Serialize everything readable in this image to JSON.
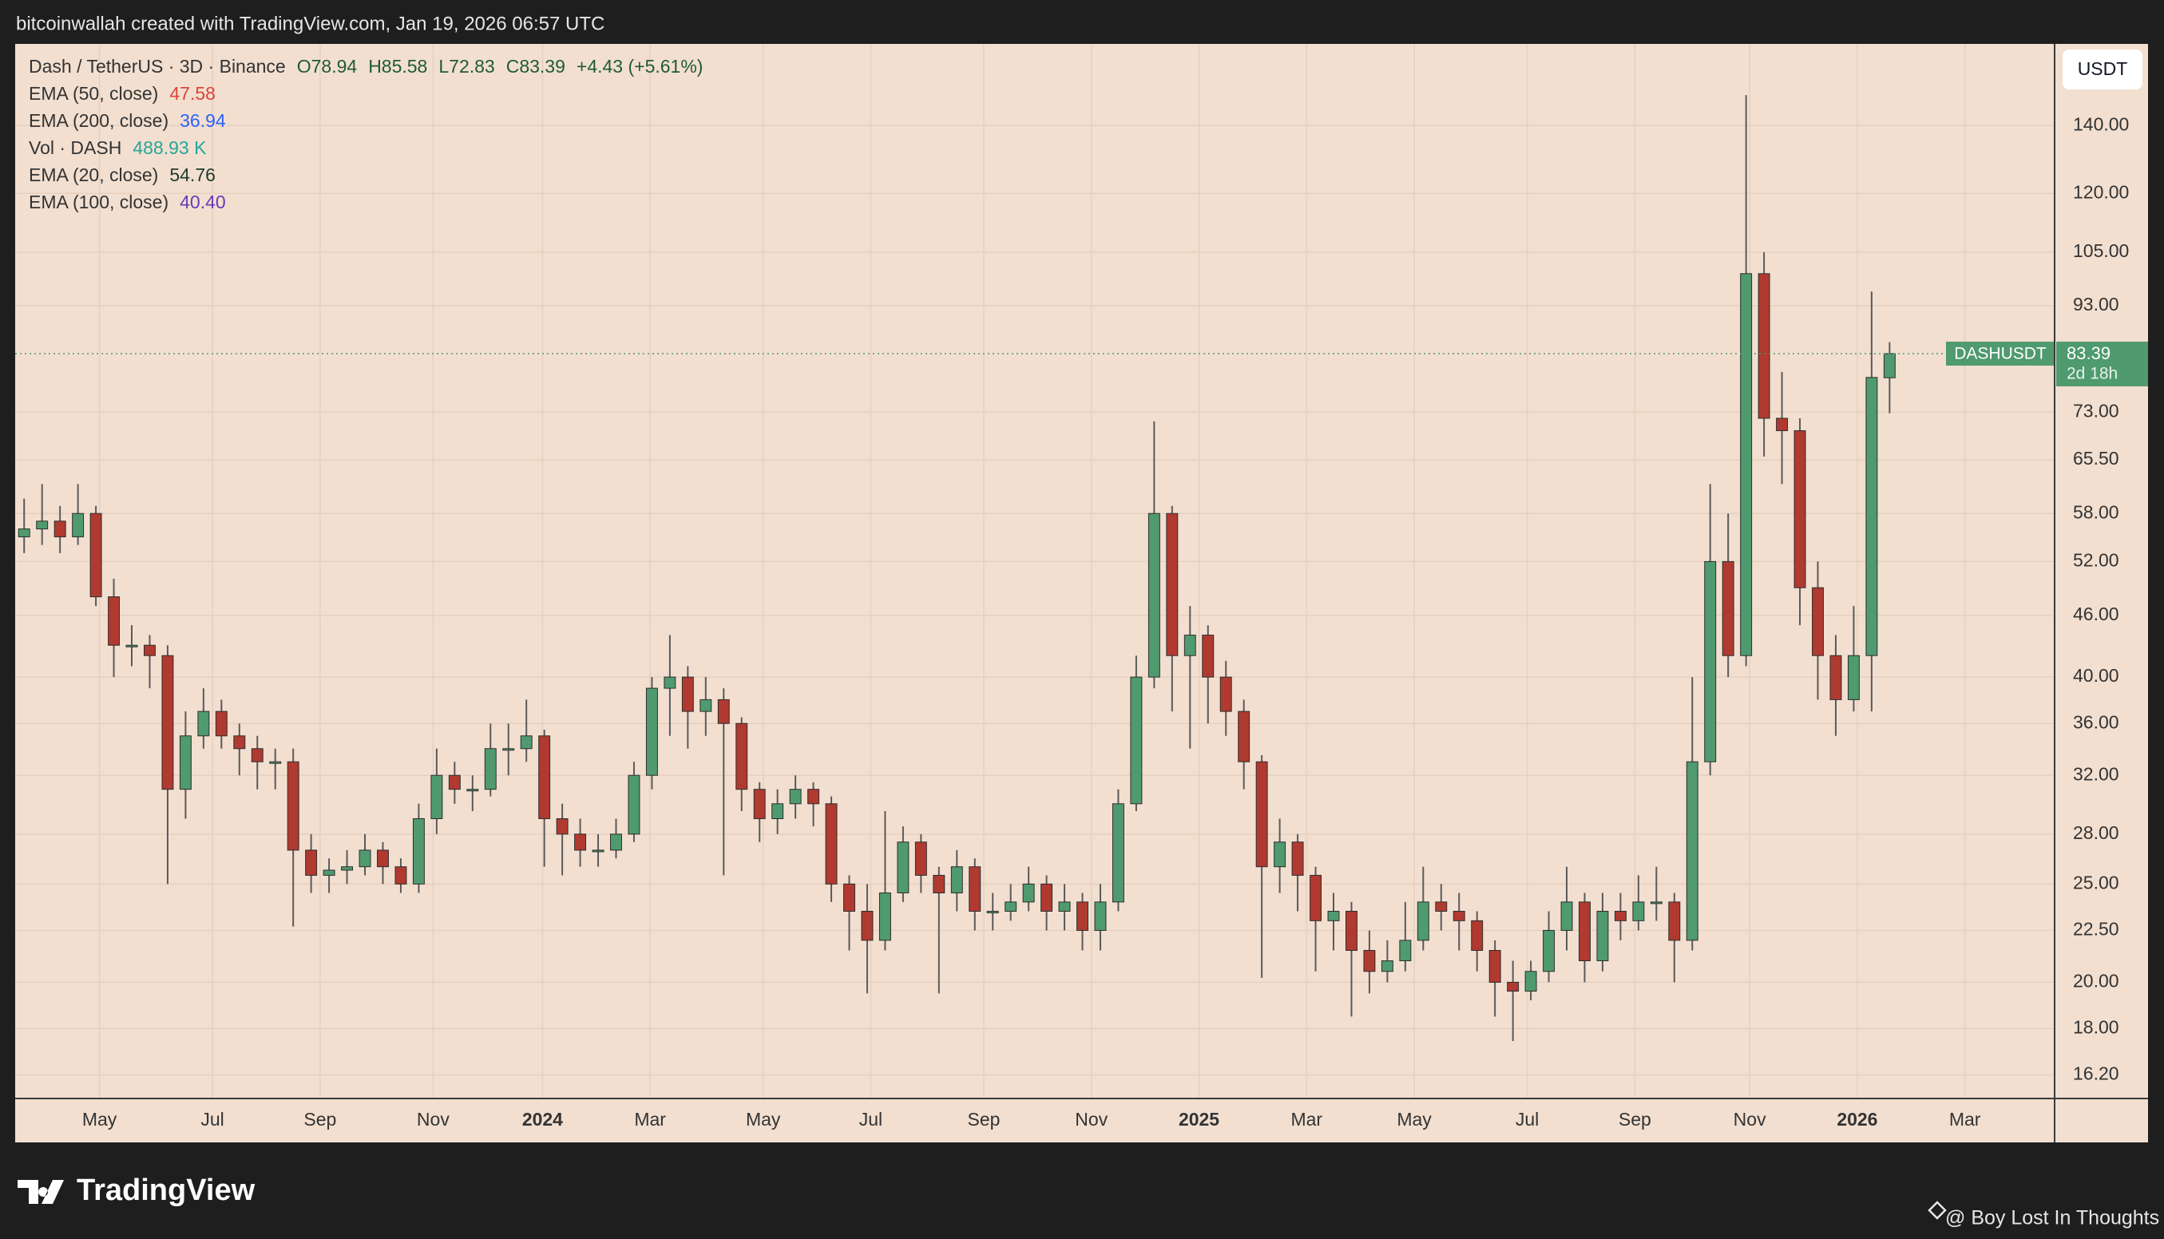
{
  "page": {
    "header": "bitcoinwallah created with TradingView.com, Jan 19, 2026 06:57 UTC",
    "footer": {
      "logo": "TradingView",
      "credit": "@ Boy Lost In Thoughts"
    }
  },
  "chart_data": {
    "type": "candlestick",
    "title": "Dash / TetherUS · 3D · Binance",
    "ohlc_readout": [
      "O78.94",
      "H85.58",
      "L72.83",
      "C83.39",
      "+4.43 (+5.61%)"
    ],
    "indicators": [
      {
        "name": "EMA (50, close)",
        "value": "47.58",
        "color": "#d9453b"
      },
      {
        "name": "EMA (200, close)",
        "value": "36.94",
        "color": "#2962ff"
      },
      {
        "name": "Vol · DASH",
        "value": "488.93 K",
        "color": "#26a69a"
      },
      {
        "name": "EMA (20, close)",
        "value": "54.76",
        "color": "#1f3a2a"
      },
      {
        "name": "EMA (100, close)",
        "value": "40.40",
        "color": "#673ab7"
      }
    ],
    "symbol": "DASHUSDT",
    "currency": "USDT",
    "countdown": "2d 18h",
    "up_color": "#4f9a6e",
    "down_color": "#b03a30",
    "log_scale": true,
    "grid": true,
    "open": [
      55,
      56,
      57,
      55,
      58,
      48,
      43,
      43,
      42,
      31,
      35,
      37,
      35,
      34,
      33,
      33,
      27,
      25.5,
      25.8,
      26,
      27,
      26,
      25,
      29,
      32,
      31,
      31,
      34,
      34,
      35,
      29,
      28,
      27,
      27,
      28,
      32,
      39,
      40,
      37,
      38,
      36,
      31,
      29,
      30,
      31,
      30,
      25,
      23.5,
      22,
      24.5,
      27.5,
      25.5,
      24.5,
      26,
      23.5,
      23.5,
      24,
      25,
      23.5,
      24,
      22.5,
      24,
      30,
      40,
      58,
      42,
      44,
      40,
      37,
      33,
      26,
      27.5,
      25.5,
      23,
      23.5,
      21.5,
      20.5,
      21,
      22,
      24,
      23.5,
      23,
      21.5,
      20,
      19.6,
      20.5,
      22.5,
      24,
      21,
      23.5,
      23,
      24,
      24,
      22,
      33,
      52,
      42,
      100,
      72,
      70,
      49,
      42,
      38,
      42,
      78.94
    ],
    "high": [
      60,
      62,
      59,
      62,
      59,
      50,
      45,
      44,
      43,
      37,
      39,
      38,
      36,
      35,
      34,
      34,
      28,
      26.5,
      27,
      28,
      27.5,
      26.5,
      30,
      34,
      33,
      32,
      36,
      36,
      38,
      35.5,
      30,
      29,
      28,
      29,
      33,
      40,
      44,
      41,
      40,
      39,
      36.5,
      31.5,
      31,
      32,
      31.5,
      30.5,
      25.5,
      25,
      29.5,
      28.5,
      28,
      26,
      27,
      26.5,
      24.5,
      25,
      26,
      25.5,
      25,
      24.5,
      25,
      31,
      42,
      71.5,
      59,
      47,
      45,
      41.5,
      38,
      33.5,
      29,
      28,
      26,
      24.5,
      24,
      22.5,
      22,
      24,
      26,
      25,
      24.5,
      23.5,
      22,
      21,
      21,
      23.5,
      26,
      24.5,
      24.5,
      24.5,
      25.5,
      26,
      24.5,
      40,
      62,
      58,
      150,
      105,
      80,
      72,
      52,
      44,
      47,
      96,
      85.58
    ],
    "low": [
      53,
      54,
      53,
      54,
      47,
      40,
      41,
      39,
      25,
      29,
      34,
      34,
      32,
      31,
      31,
      22.7,
      24.5,
      24.5,
      25,
      25.5,
      25,
      24.5,
      24.5,
      28,
      30,
      29.5,
      30.5,
      32,
      33,
      26,
      25.5,
      26,
      26,
      26.5,
      27.5,
      31,
      35,
      34,
      35,
      25.5,
      29.5,
      27.5,
      28,
      29,
      28.5,
      24,
      21.5,
      19.5,
      21.5,
      24,
      24.5,
      19.5,
      23.5,
      22.5,
      22.5,
      23,
      23.5,
      22.5,
      22.5,
      21.5,
      21.5,
      23.5,
      29.5,
      39,
      37,
      34,
      36,
      35,
      31,
      20.2,
      24.5,
      23.5,
      20.5,
      21.5,
      18.5,
      19.5,
      20,
      20.5,
      21.5,
      22.5,
      21.5,
      20.5,
      18.5,
      17.5,
      19.2,
      20,
      21.5,
      20,
      20.5,
      22,
      22.5,
      23,
      20,
      21.5,
      32,
      40,
      41,
      66,
      62,
      45,
      38,
      35,
      37,
      37,
      72.83
    ],
    "close": [
      56,
      57,
      55,
      58,
      48,
      43,
      43,
      42,
      31,
      35,
      37,
      35,
      34,
      33,
      33,
      27,
      25.5,
      25.8,
      26,
      27,
      26,
      25,
      29,
      32,
      31,
      31,
      34,
      34,
      35,
      29,
      28,
      27,
      27,
      28,
      32,
      39,
      40,
      37,
      38,
      36,
      31,
      29,
      30,
      31,
      30,
      25,
      23.5,
      22,
      24.5,
      27.5,
      25.5,
      24.5,
      26,
      23.5,
      23.5,
      24,
      25,
      23.5,
      24,
      22.5,
      24,
      30,
      40,
      58,
      42,
      44,
      40,
      37,
      33,
      26,
      27.5,
      25.5,
      23,
      23.5,
      21.5,
      20.5,
      21,
      22,
      24,
      23.5,
      23,
      21.5,
      20,
      19.6,
      20.5,
      22.5,
      24,
      21,
      23.5,
      23,
      24,
      24,
      22,
      33,
      52,
      42,
      100,
      72,
      70,
      49,
      42,
      38,
      42,
      79,
      83.39
    ],
    "xlim": [
      -0.5,
      113.2
    ],
    "xticks": [
      {
        "value": 4.2,
        "label": "May"
      },
      {
        "value": 10.5,
        "label": "Jul"
      },
      {
        "value": 16.5,
        "label": "Sep"
      },
      {
        "value": 22.8,
        "label": "Nov"
      },
      {
        "value": 28.9,
        "label": "2024"
      },
      {
        "value": 34.9,
        "label": "Mar"
      },
      {
        "value": 41.2,
        "label": "May"
      },
      {
        "value": 47.2,
        "label": "Jul"
      },
      {
        "value": 53.5,
        "label": "Sep"
      },
      {
        "value": 59.5,
        "label": "Nov"
      },
      {
        "value": 65.5,
        "label": "2025"
      },
      {
        "value": 71.5,
        "label": "Mar"
      },
      {
        "value": 77.5,
        "label": "May"
      },
      {
        "value": 83.8,
        "label": "Jul"
      },
      {
        "value": 89.8,
        "label": "Sep"
      },
      {
        "value": 96.2,
        "label": "Nov"
      },
      {
        "value": 102.2,
        "label": "2026"
      },
      {
        "value": 108.2,
        "label": "Mar"
      }
    ],
    "ylim": [
      15.36,
      168.5
    ],
    "yticks": [
      {
        "value": 16.2,
        "label": "16.20"
      },
      {
        "value": 18,
        "label": "18.00"
      },
      {
        "value": 20,
        "label": "20.00"
      },
      {
        "value": 22.5,
        "label": "22.50"
      },
      {
        "value": 25,
        "label": "25.00"
      },
      {
        "value": 28,
        "label": "28.00"
      },
      {
        "value": 32,
        "label": "32.00"
      },
      {
        "value": 36,
        "label": "36.00"
      },
      {
        "value": 40,
        "label": "40.00"
      },
      {
        "value": 46,
        "label": "46.00"
      },
      {
        "value": 52,
        "label": "52.00"
      },
      {
        "value": 58,
        "label": "58.00"
      },
      {
        "value": 65.5,
        "label": "65.50"
      },
      {
        "value": 73,
        "label": "73.00"
      },
      {
        "value": 93,
        "label": "93.00"
      },
      {
        "value": 105,
        "label": "105.00"
      },
      {
        "value": 120,
        "label": "120.00"
      },
      {
        "value": 140,
        "label": "140.00"
      }
    ]
  }
}
